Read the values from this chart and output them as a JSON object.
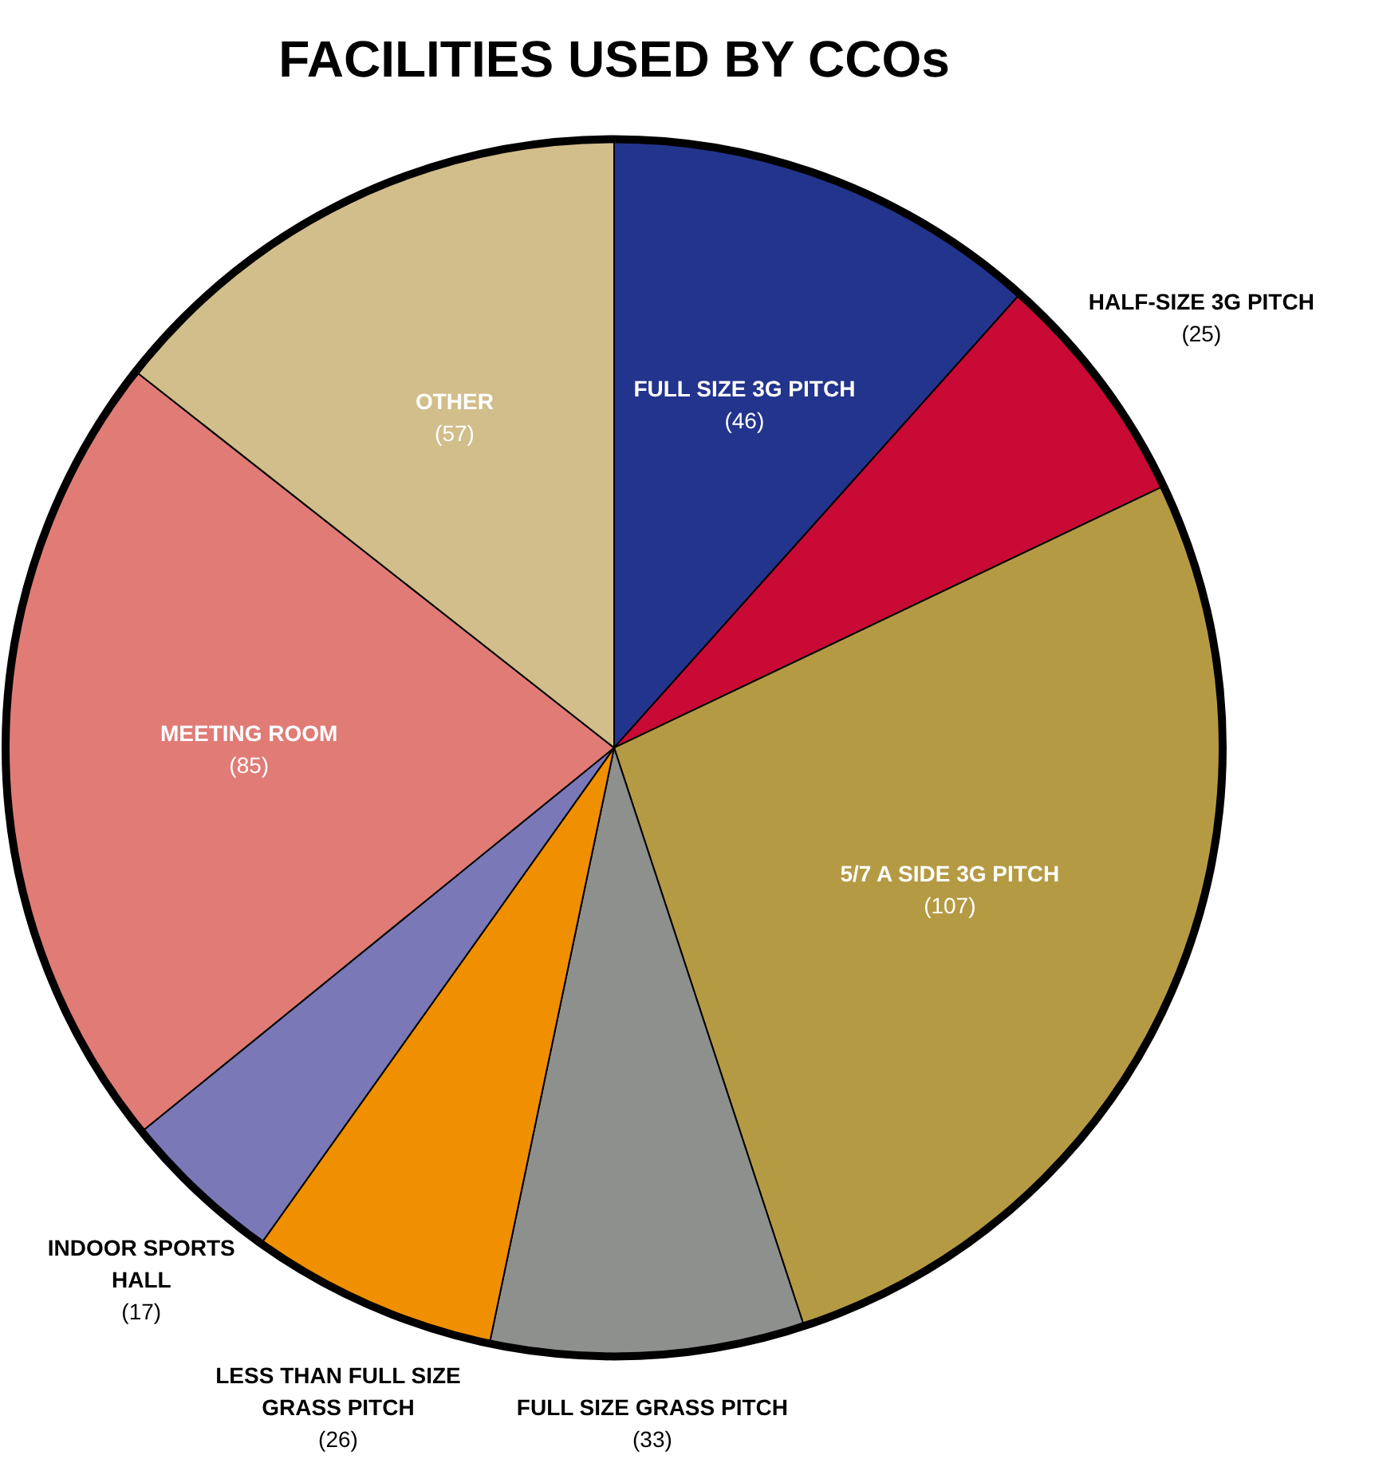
{
  "chart_data": {
    "type": "pie",
    "title": "FACILITIES USED BY CCOs",
    "categories": [
      "FULL SIZE 3G PITCH",
      "HALF-SIZE 3G PITCH",
      "5/7 A SIDE 3G PITCH",
      "FULL SIZE GRASS PITCH",
      "LESS THAN FULL SIZE GRASS PITCH",
      "INDOOR SPORTS HALL",
      "MEETING ROOM",
      "OTHER"
    ],
    "values": [
      46,
      25,
      107,
      33,
      26,
      17,
      85,
      57
    ],
    "value_labels": [
      "(46)",
      "(25)",
      "(107)",
      "(33)",
      "(26)",
      "(17)",
      "(85)",
      "(57)"
    ],
    "colors": [
      "#23348c",
      "#c90a35",
      "#b59a44",
      "#8e908e",
      "#f08f00",
      "#7a78b7",
      "#e07b76",
      "#d2be8b"
    ],
    "legend": false
  }
}
